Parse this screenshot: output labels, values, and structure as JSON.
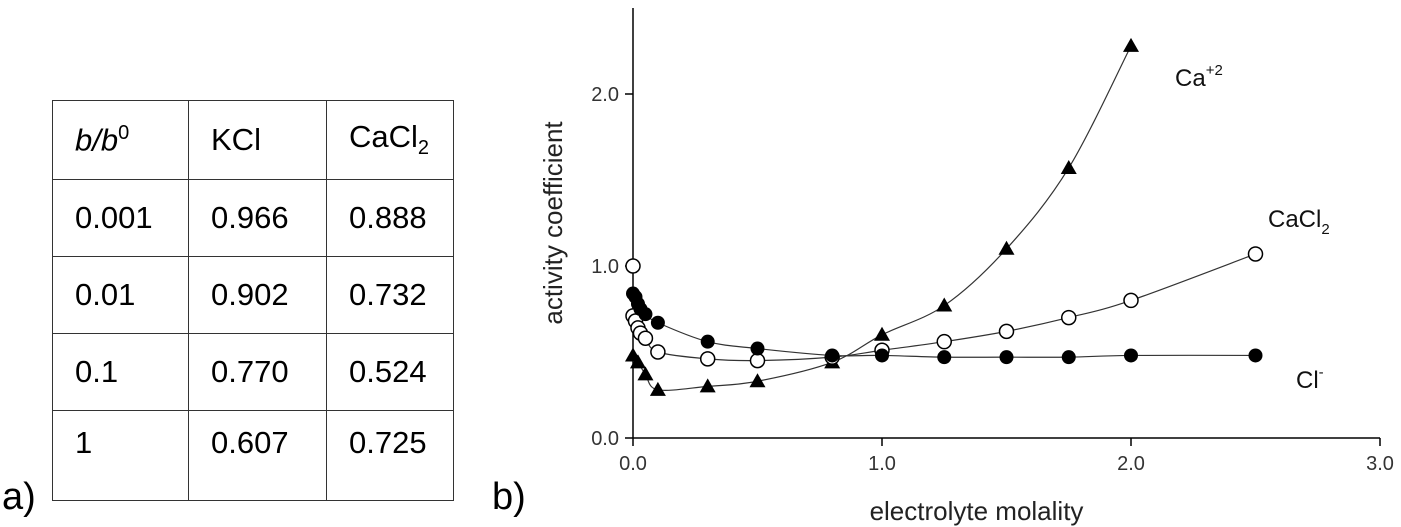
{
  "panel_labels": {
    "a": "a)",
    "b": "b)"
  },
  "table": {
    "headers": [
      {
        "main": "b/b",
        "sup": "0"
      },
      {
        "main": "KCl"
      },
      {
        "main": "CaCl",
        "sub": "2"
      }
    ],
    "rows": [
      [
        "0.001",
        "0.966",
        "0.888"
      ],
      [
        "0.01",
        "0.902",
        "0.732"
      ],
      [
        "0.1",
        "0.770",
        "0.524"
      ],
      [
        "1",
        "0.607",
        "0.725"
      ]
    ]
  },
  "chart_data": {
    "type": "scatter",
    "title": "",
    "xlabel": "electrolyte molality",
    "ylabel": "activity coefficient",
    "xlim": [
      0,
      3.0
    ],
    "ylim": [
      0,
      2.5
    ],
    "xticks": [
      0,
      1.0,
      2.0,
      3.0
    ],
    "xtick_labels": [
      "0.0",
      "1.0",
      "2.0",
      "3.0"
    ],
    "yticks": [
      0,
      1.0,
      2.0
    ],
    "ytick_labels": [
      "0.0",
      "1.0",
      "2.0"
    ],
    "grid": false,
    "series": [
      {
        "name": "Ca+2",
        "label_main": "Ca",
        "label_sup": "+2",
        "marker": "triangle-filled",
        "x": [
          0.0,
          0.02,
          0.05,
          0.1,
          0.3,
          0.5,
          0.8,
          1.0,
          1.25,
          1.5,
          1.75,
          2.0
        ],
        "y": [
          0.48,
          0.44,
          0.37,
          0.28,
          0.3,
          0.33,
          0.44,
          0.6,
          0.77,
          1.1,
          1.57,
          2.28
        ]
      },
      {
        "name": "CaCl2",
        "label_main": "CaCl",
        "label_sub": "2",
        "marker": "circle-open",
        "x": [
          0.0,
          0.0,
          0.01,
          0.02,
          0.03,
          0.05,
          0.1,
          0.3,
          0.5,
          0.8,
          1.0,
          1.25,
          1.5,
          1.75,
          2.0,
          2.5
        ],
        "y": [
          1.0,
          0.71,
          0.68,
          0.64,
          0.61,
          0.58,
          0.5,
          0.46,
          0.45,
          0.47,
          0.51,
          0.56,
          0.62,
          0.7,
          0.8,
          1.07
        ]
      },
      {
        "name": "Cl-",
        "label_main": "Cl",
        "label_sup": "-",
        "marker": "circle-filled",
        "x": [
          0.0,
          0.01,
          0.02,
          0.03,
          0.05,
          0.1,
          0.3,
          0.5,
          0.8,
          1.0,
          1.25,
          1.5,
          1.75,
          2.0,
          2.5
        ],
        "y": [
          0.84,
          0.82,
          0.78,
          0.75,
          0.72,
          0.67,
          0.56,
          0.52,
          0.48,
          0.48,
          0.47,
          0.47,
          0.47,
          0.48,
          0.48
        ]
      }
    ]
  }
}
